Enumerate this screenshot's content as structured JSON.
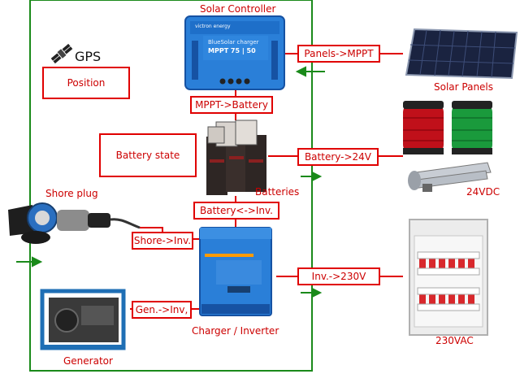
{
  "title": "Solar Controller",
  "gps": {
    "label": "GPS"
  },
  "boxes": {
    "position": "Position",
    "battery_state": "Battery state",
    "panels_mppt": "Panels->MPPT",
    "mppt_battery": "MPPT->Battery",
    "battery_24v": "Battery->24V",
    "battery_inv": "Battery<->Inv.",
    "shore_inv": "Shore->Inv.",
    "gen_inv": "Gen.->Inv,",
    "inv_230v": "Inv.->230V"
  },
  "labels": {
    "solar_panels": "Solar Panels",
    "batteries": "Batteries",
    "vdc24": "24VDC",
    "shore_plug": "Shore plug",
    "charger_inverter": "Charger / Inverter",
    "vac230": "230VAC",
    "generator": "Generator"
  },
  "device_text": {
    "mppt_brand": "victron energy",
    "mppt_name": "BlueSolar charger",
    "mppt_model": "MPPT 75 | 50"
  },
  "colors": {
    "frame": "#1a8a1a",
    "wire": "#e00000",
    "victron_blue": "#1e6fc9",
    "arrow": "#1a8a1a"
  }
}
